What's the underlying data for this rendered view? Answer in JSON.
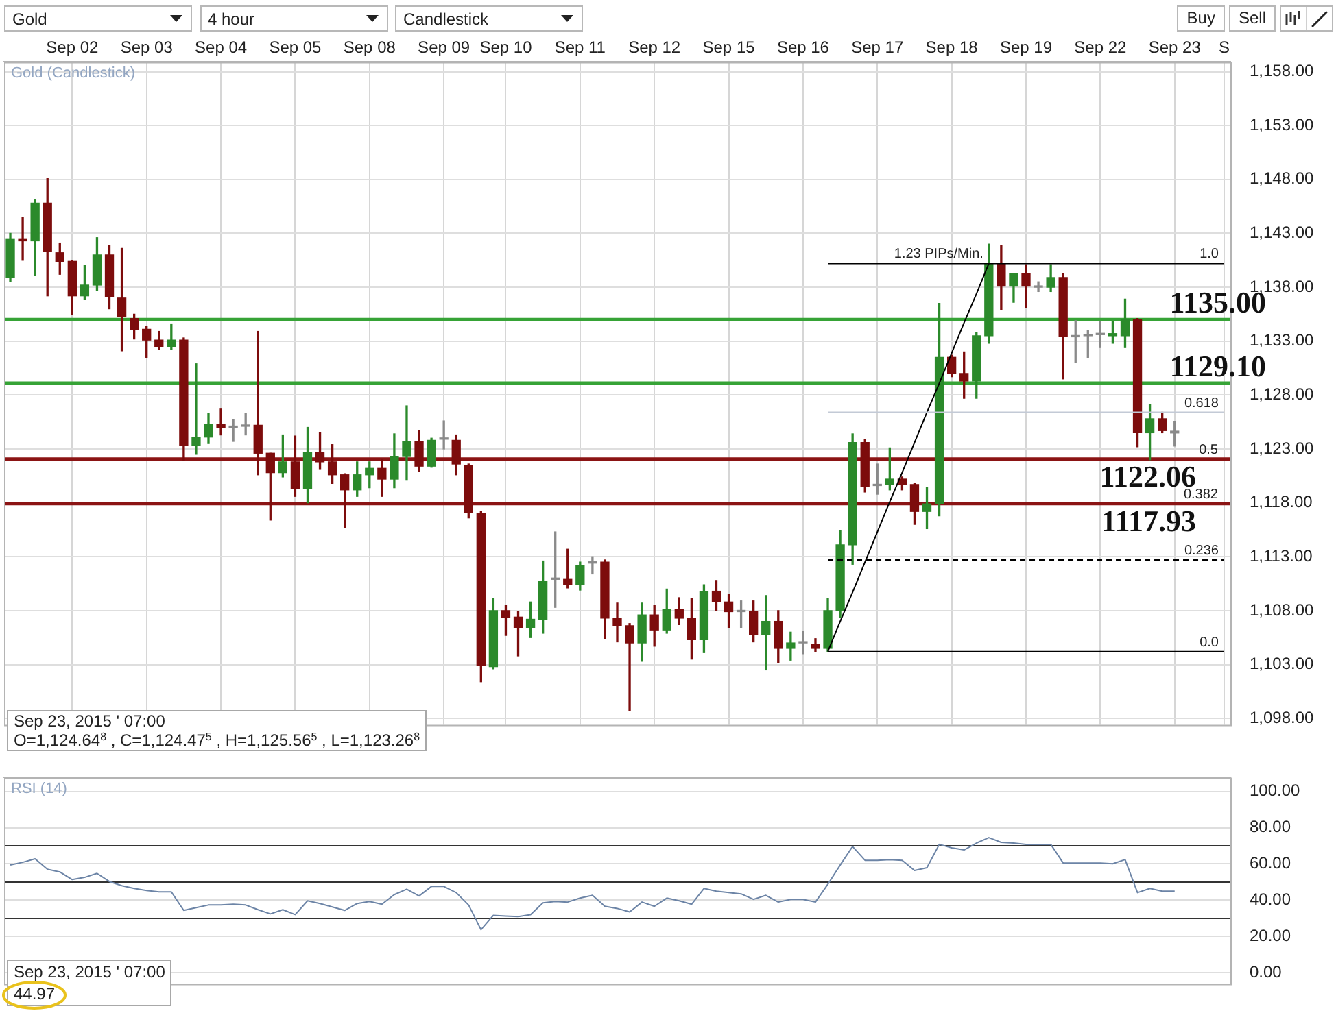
{
  "chart_data": [
    {
      "type": "other",
      "annotations": [
        "Gold",
        "4 hour",
        "Candlestick",
        "Buy",
        "Sell"
      ]
    },
    {
      "type": "candlestick",
      "title": "Gold (Candlestick)",
      "categories": [
        null,
        null,
        null,
        null,
        null,
        "Sep 02",
        null,
        null,
        null,
        null,
        null,
        "Sep 03",
        null,
        null,
        null,
        null,
        null,
        "Sep 04",
        null,
        null,
        null,
        null,
        null,
        "Sep 05",
        null,
        null,
        null,
        null,
        null,
        "Sep 08",
        null,
        null,
        null,
        null,
        null,
        "Sep 09",
        null,
        null,
        null,
        null,
        "Sep 10",
        null,
        null,
        null,
        null,
        null,
        "Sep 11",
        null,
        null,
        null,
        null,
        null,
        "Sep 12",
        null,
        null,
        null,
        null,
        null,
        "Sep 15",
        null,
        null,
        null,
        null,
        null,
        "Sep 16",
        null,
        null,
        null,
        null,
        null,
        "Sep 17",
        null,
        null,
        null,
        null,
        null,
        "Sep 18",
        null,
        null,
        null,
        null,
        null,
        "Sep 19",
        null,
        null,
        null,
        null,
        null,
        "Sep 22",
        null,
        null,
        null,
        null,
        null,
        "Sep 23",
        null,
        null,
        null,
        "S"
      ],
      "ohlc": [
        [
          1138.9,
          1143.0,
          1138.5,
          1142.5
        ],
        [
          1142.5,
          1144.5,
          1140.5,
          1142.3
        ],
        [
          1142.3,
          1146.1,
          1139.1,
          1145.8
        ],
        [
          1145.8,
          1148.1,
          1137.2,
          1141.3
        ],
        [
          1141.2,
          1142.1,
          1139.2,
          1140.4
        ],
        [
          1140.4,
          1140.5,
          1135.5,
          1137.2
        ],
        [
          1137.2,
          1140.0,
          1136.9,
          1138.2
        ],
        [
          1138.2,
          1142.6,
          1137.7,
          1141.0
        ],
        [
          1141.0,
          1141.9,
          1136.0,
          1137.1
        ],
        [
          1137.0,
          1141.6,
          1132.1,
          1135.3
        ],
        [
          1135.1,
          1135.5,
          1133.2,
          1134.1
        ],
        [
          1134.1,
          1134.4,
          1131.5,
          1133.1
        ],
        [
          1133.1,
          1133.9,
          1132.2,
          1132.5
        ],
        [
          1132.5,
          1134.6,
          1132.2,
          1133.1
        ],
        [
          1133.1,
          1133.3,
          1121.9,
          1123.3
        ],
        [
          1123.3,
          1130.9,
          1122.5,
          1124.1
        ],
        [
          1124.1,
          1126.3,
          1123.5,
          1125.3
        ],
        [
          1125.3,
          1126.7,
          1124.3,
          1125.0
        ],
        [
          1125.0,
          1125.7,
          1123.7,
          1125.0
        ],
        [
          1125.1,
          1126.3,
          1124.3,
          1125.1
        ],
        [
          1125.2,
          1133.9,
          1120.6,
          1122.6
        ],
        [
          1122.6,
          1122.6,
          1116.4,
          1120.8
        ],
        [
          1120.8,
          1124.3,
          1120.4,
          1121.8
        ],
        [
          1121.8,
          1124.2,
          1118.6,
          1119.3
        ],
        [
          1119.3,
          1125.0,
          1118.0,
          1122.7
        ],
        [
          1122.7,
          1124.5,
          1121.1,
          1121.8
        ],
        [
          1121.8,
          1123.4,
          1119.8,
          1120.6
        ],
        [
          1120.6,
          1120.7,
          1115.7,
          1119.2
        ],
        [
          1119.2,
          1121.8,
          1118.6,
          1120.6
        ],
        [
          1120.6,
          1121.8,
          1119.4,
          1121.2
        ],
        [
          1121.2,
          1122.0,
          1118.6,
          1120.2
        ],
        [
          1120.2,
          1124.4,
          1119.4,
          1122.3
        ],
        [
          1122.3,
          1127.0,
          1120.1,
          1123.7
        ],
        [
          1123.7,
          1124.7,
          1120.9,
          1121.4
        ],
        [
          1121.4,
          1124.0,
          1121.3,
          1123.8
        ],
        [
          1123.9,
          1125.6,
          1123.0,
          1123.9
        ],
        [
          1123.8,
          1124.3,
          1120.6,
          1121.6
        ],
        [
          1121.5,
          1121.6,
          1116.6,
          1117.1
        ],
        [
          1117.0,
          1117.2,
          1101.4,
          1102.9
        ],
        [
          1102.8,
          1109.1,
          1102.6,
          1108.0
        ],
        [
          1108.0,
          1108.5,
          1105.7,
          1107.4
        ],
        [
          1107.4,
          1107.9,
          1103.8,
          1106.4
        ],
        [
          1106.4,
          1108.8,
          1105.5,
          1107.2
        ],
        [
          1107.2,
          1112.6,
          1105.9,
          1110.7
        ],
        [
          1110.9,
          1115.3,
          1108.3,
          1110.9
        ],
        [
          1110.9,
          1113.7,
          1110.1,
          1110.4
        ],
        [
          1110.4,
          1112.5,
          1109.9,
          1112.2
        ],
        [
          1112.4,
          1113.0,
          1111.4,
          1112.4
        ],
        [
          1112.5,
          1112.7,
          1105.4,
          1107.3
        ],
        [
          1107.3,
          1108.7,
          1105.1,
          1106.6
        ],
        [
          1106.6,
          1106.8,
          1098.7,
          1105.0
        ],
        [
          1105.0,
          1108.7,
          1103.3,
          1107.6
        ],
        [
          1107.6,
          1108.5,
          1104.7,
          1106.2
        ],
        [
          1106.2,
          1110.0,
          1105.9,
          1108.1
        ],
        [
          1108.1,
          1109.2,
          1106.7,
          1107.3
        ],
        [
          1107.3,
          1109.1,
          1103.5,
          1105.3
        ],
        [
          1105.3,
          1110.4,
          1104.1,
          1109.8
        ],
        [
          1109.8,
          1110.8,
          1108.0,
          1108.8
        ],
        [
          1108.8,
          1109.5,
          1106.4,
          1107.9
        ],
        [
          1107.9,
          1108.9,
          1106.4,
          1107.9
        ],
        [
          1107.9,
          1108.9,
          1105.1,
          1105.8
        ],
        [
          1105.8,
          1109.4,
          1102.5,
          1107.0
        ],
        [
          1107.0,
          1108.0,
          1103.2,
          1104.5
        ],
        [
          1104.5,
          1106.0,
          1103.4,
          1105.0
        ],
        [
          1105.0,
          1106.1,
          1104.0,
          1105.0
        ],
        [
          1104.9,
          1105.4,
          1104.2,
          1104.5
        ],
        [
          1104.5,
          1109.1,
          1104.2,
          1108.0
        ],
        [
          1108.0,
          1115.4,
          1107.4,
          1114.1
        ],
        [
          1114.1,
          1124.4,
          1112.3,
          1123.6
        ],
        [
          1123.6,
          1123.9,
          1119.0,
          1119.5
        ],
        [
          1119.6,
          1121.6,
          1118.8,
          1119.6
        ],
        [
          1119.7,
          1123.1,
          1119.2,
          1120.2
        ],
        [
          1120.2,
          1120.4,
          1119.2,
          1119.7
        ],
        [
          1119.7,
          1119.8,
          1116.0,
          1117.2
        ],
        [
          1117.2,
          1119.4,
          1115.6,
          1117.9
        ],
        [
          1117.9,
          1136.5,
          1116.8,
          1131.5
        ],
        [
          1131.5,
          1131.7,
          1129.7,
          1130.0
        ],
        [
          1130.0,
          1132.0,
          1127.7,
          1129.3
        ],
        [
          1129.3,
          1133.8,
          1127.7,
          1133.5
        ],
        [
          1133.5,
          1142.0,
          1132.8,
          1140.2
        ],
        [
          1140.2,
          1141.9,
          1135.9,
          1138.1
        ],
        [
          1138.1,
          1139.3,
          1136.6,
          1139.3
        ],
        [
          1139.3,
          1140.1,
          1136.1,
          1138.1
        ],
        [
          1138.0,
          1138.5,
          1137.6,
          1138.0
        ],
        [
          1138.0,
          1140.1,
          1137.6,
          1138.9
        ],
        [
          1138.9,
          1139.3,
          1129.5,
          1133.4
        ],
        [
          1133.4,
          1134.9,
          1131.0,
          1133.4
        ],
        [
          1133.5,
          1134.0,
          1131.5,
          1133.5
        ],
        [
          1133.6,
          1134.8,
          1132.4,
          1133.6
        ],
        [
          1133.5,
          1134.8,
          1132.8,
          1133.7
        ],
        [
          1133.5,
          1136.9,
          1132.4,
          1135.0
        ],
        [
          1135.0,
          1135.1,
          1123.2,
          1124.5
        ],
        [
          1124.5,
          1127.1,
          1122.0,
          1125.8
        ],
        [
          1125.8,
          1126.4,
          1124.5,
          1124.7
        ],
        [
          1124.648,
          1125.565,
          1123.268,
          1124.475
        ],
        null,
        null,
        null,
        null
      ],
      "colors": [
        "#2b8a2b",
        "#7d0c0c",
        "#2b8a2b",
        "#7d0c0c",
        "#7d0c0c",
        "#7d0c0c",
        "#2b8a2b",
        "#2b8a2b",
        "#7d0c0c",
        "#7d0c0c",
        "#7d0c0c",
        "#7d0c0c",
        "#7d0c0c",
        "#2b8a2b",
        "#7d0c0c",
        "#2b8a2b",
        "#2b8a2b",
        "#7d0c0c",
        "#8a8a8a",
        "#8a8a8a",
        "#7d0c0c",
        "#7d0c0c",
        "#2b8a2b",
        "#7d0c0c",
        "#2b8a2b",
        "#7d0c0c",
        "#7d0c0c",
        "#7d0c0c",
        "#2b8a2b",
        "#2b8a2b",
        "#7d0c0c",
        "#2b8a2b",
        "#2b8a2b",
        "#7d0c0c",
        "#2b8a2b",
        "#8a8a8a",
        "#7d0c0c",
        "#7d0c0c",
        "#7d0c0c",
        "#2b8a2b",
        "#7d0c0c",
        "#7d0c0c",
        "#2b8a2b",
        "#2b8a2b",
        "#8a8a8a",
        "#7d0c0c",
        "#2b8a2b",
        "#8a8a8a",
        "#7d0c0c",
        "#7d0c0c",
        "#7d0c0c",
        "#2b8a2b",
        "#7d0c0c",
        "#2b8a2b",
        "#7d0c0c",
        "#7d0c0c",
        "#2b8a2b",
        "#7d0c0c",
        "#7d0c0c",
        "#8a8a8a",
        "#7d0c0c",
        "#2b8a2b",
        "#7d0c0c",
        "#2b8a2b",
        "#8a8a8a",
        "#7d0c0c",
        "#2b8a2b",
        "#2b8a2b",
        "#2b8a2b",
        "#7d0c0c",
        "#8a8a8a",
        "#2b8a2b",
        "#7d0c0c",
        "#7d0c0c",
        "#2b8a2b",
        "#2b8a2b",
        "#7d0c0c",
        "#7d0c0c",
        "#2b8a2b",
        "#2b8a2b",
        "#7d0c0c",
        "#2b8a2b",
        "#7d0c0c",
        "#8a8a8a",
        "#2b8a2b",
        "#7d0c0c",
        "#8a8a8a",
        "#8a8a8a",
        "#8a8a8a",
        "#2b8a2b",
        "#2b8a2b",
        "#7d0c0c",
        "#2b8a2b",
        "#7d0c0c",
        "#8a8a8a",
        null,
        null,
        null,
        null
      ],
      "series": [
        {
          "type": "line",
          "name": "1.0",
          "color": "#000000",
          "values": [
            null,
            null,
            null,
            null,
            null,
            null,
            null,
            null,
            null,
            null,
            null,
            null,
            null,
            null,
            null,
            null,
            null,
            null,
            null,
            null,
            null,
            null,
            null,
            null,
            null,
            null,
            null,
            null,
            null,
            null,
            null,
            null,
            null,
            null,
            null,
            null,
            null,
            null,
            null,
            null,
            null,
            null,
            null,
            null,
            null,
            null,
            null,
            null,
            null,
            null,
            null,
            null,
            null,
            null,
            null,
            null,
            null,
            null,
            null,
            null,
            null,
            null,
            null,
            null,
            null,
            null,
            1140.2,
            1140.2,
            1140.2,
            1140.2,
            1140.2,
            1140.2,
            1140.2,
            1140.2,
            1140.2,
            1140.2,
            1140.2,
            1140.2,
            1140.2,
            1140.2,
            1140.2,
            1140.2,
            1140.2,
            1140.2,
            1140.2,
            1140.2,
            1140.2,
            1140.2,
            1140.2,
            1140.2,
            1140.2,
            1140.2,
            1140.2,
            1140.2,
            1140.2,
            1140.2,
            1140.2,
            1140.2,
            1140.2
          ]
        },
        {
          "type": "line",
          "name": "0.618",
          "color": "#c3cad6",
          "values": [
            null,
            null,
            null,
            null,
            null,
            null,
            null,
            null,
            null,
            null,
            null,
            null,
            null,
            null,
            null,
            null,
            null,
            null,
            null,
            null,
            null,
            null,
            null,
            null,
            null,
            null,
            null,
            null,
            null,
            null,
            null,
            null,
            null,
            null,
            null,
            null,
            null,
            null,
            null,
            null,
            null,
            null,
            null,
            null,
            null,
            null,
            null,
            null,
            null,
            null,
            null,
            null,
            null,
            null,
            null,
            null,
            null,
            null,
            null,
            null,
            null,
            null,
            null,
            null,
            null,
            null,
            1126.4,
            1126.4,
            1126.4,
            1126.4,
            1126.4,
            1126.4,
            1126.4,
            1126.4,
            1126.4,
            1126.4,
            1126.4,
            1126.4,
            1126.4,
            1126.4,
            1126.4,
            1126.4,
            1126.4,
            1126.4,
            1126.4,
            1126.4,
            1126.4,
            1126.4,
            1126.4,
            1126.4,
            1126.4,
            1126.4,
            1126.4,
            1126.4,
            1126.4,
            1126.4,
            1126.4,
            1126.4,
            1126.4
          ]
        },
        {
          "type": "line",
          "name": "0.236",
          "color": "#000000",
          "line_style": "dashed",
          "values": [
            null,
            null,
            null,
            null,
            null,
            null,
            null,
            null,
            null,
            null,
            null,
            null,
            null,
            null,
            null,
            null,
            null,
            null,
            null,
            null,
            null,
            null,
            null,
            null,
            null,
            null,
            null,
            null,
            null,
            null,
            null,
            null,
            null,
            null,
            null,
            null,
            null,
            null,
            null,
            null,
            null,
            null,
            null,
            null,
            null,
            null,
            null,
            null,
            null,
            null,
            null,
            null,
            null,
            null,
            null,
            null,
            null,
            null,
            null,
            null,
            null,
            null,
            null,
            null,
            null,
            null,
            1112.7,
            1112.7,
            1112.7,
            1112.7,
            1112.7,
            1112.7,
            1112.7,
            1112.7,
            1112.7,
            1112.7,
            1112.7,
            1112.7,
            1112.7,
            1112.7,
            1112.7,
            1112.7,
            1112.7,
            1112.7,
            1112.7,
            1112.7,
            1112.7,
            1112.7,
            1112.7,
            1112.7,
            1112.7,
            1112.7,
            1112.7,
            1112.7,
            1112.7,
            1112.7,
            1112.7,
            1112.7,
            1112.7
          ]
        },
        {
          "type": "line",
          "name": "0.0",
          "color": "#000000",
          "values": [
            null,
            null,
            null,
            null,
            null,
            null,
            null,
            null,
            null,
            null,
            null,
            null,
            null,
            null,
            null,
            null,
            null,
            null,
            null,
            null,
            null,
            null,
            null,
            null,
            null,
            null,
            null,
            null,
            null,
            null,
            null,
            null,
            null,
            null,
            null,
            null,
            null,
            null,
            null,
            null,
            null,
            null,
            null,
            null,
            null,
            null,
            null,
            null,
            null,
            null,
            null,
            null,
            null,
            null,
            null,
            null,
            null,
            null,
            null,
            null,
            null,
            null,
            null,
            null,
            null,
            null,
            1104.2,
            1104.2,
            1104.2,
            1104.2,
            1104.2,
            1104.2,
            1104.2,
            1104.2,
            1104.2,
            1104.2,
            1104.2,
            1104.2,
            1104.2,
            1104.2,
            1104.2,
            1104.2,
            1104.2,
            1104.2,
            1104.2,
            1104.2,
            1104.2,
            1104.2,
            1104.2,
            1104.2,
            1104.2,
            1104.2,
            1104.2,
            1104.2,
            1104.2,
            1104.2,
            1104.2,
            1104.2,
            1104.2
          ]
        },
        {
          "type": "line",
          "name": "1.23 PIPs/Min.",
          "color": "#000000",
          "values": [
            null,
            null,
            null,
            null,
            null,
            null,
            null,
            null,
            null,
            null,
            null,
            null,
            null,
            null,
            null,
            null,
            null,
            null,
            null,
            null,
            null,
            null,
            null,
            null,
            null,
            null,
            null,
            null,
            null,
            null,
            null,
            null,
            null,
            null,
            null,
            null,
            null,
            null,
            null,
            null,
            null,
            null,
            null,
            null,
            null,
            null,
            null,
            null,
            null,
            null,
            null,
            null,
            null,
            null,
            null,
            null,
            null,
            null,
            null,
            null,
            null,
            null,
            null,
            null,
            null,
            null,
            1104.2,
            1107.0,
            1109.7,
            1112.5,
            1115.3,
            1118.1,
            1120.8,
            1123.6,
            1126.4,
            1129.1,
            1131.9,
            1134.7,
            1137.4,
            1140.2,
            null,
            null,
            null,
            null,
            null,
            null,
            null,
            null,
            null,
            null,
            null,
            null,
            null,
            null,
            null,
            null,
            null,
            null,
            null
          ]
        }
      ],
      "ylim": [
        1097.4,
        1158.9
      ],
      "yticks": [
        {
          "value": 1098,
          "label": "1,098.00"
        },
        {
          "value": 1103,
          "label": "1,103.00"
        },
        {
          "value": 1108,
          "label": "1,108.00"
        },
        {
          "value": 1113,
          "label": "1,113.00"
        },
        {
          "value": 1118,
          "label": "1,118.00"
        },
        {
          "value": 1123,
          "label": "1,123.00"
        },
        {
          "value": 1128,
          "label": "1,128.00"
        },
        {
          "value": 1133,
          "label": "1,133.00"
        },
        {
          "value": 1138,
          "label": "1,138.00"
        },
        {
          "value": 1143,
          "label": "1,143.00"
        },
        {
          "value": 1148,
          "label": "1,148.00"
        },
        {
          "value": 1153,
          "label": "1,153.00"
        },
        {
          "value": 1158,
          "label": "1,158.00"
        }
      ],
      "grid": true,
      "ref_lines": [
        {
          "axis": "y",
          "value": 1135.0,
          "label": "1135.00",
          "color": "#36a336"
        },
        {
          "axis": "y",
          "value": 1129.1,
          "label": "1129.10",
          "color": "#36a336"
        },
        {
          "axis": "y",
          "value": 1122.06,
          "label": "1122.06",
          "color": "#8b1414"
        },
        {
          "axis": "y",
          "value": 1117.93,
          "label": "1117.93",
          "color": "#8b1414"
        }
      ],
      "annotations": [
        {
          "text": "0.5",
          "y": 1122.06
        },
        {
          "text": "0.382",
          "y": 1117.93
        },
        "Sep 23, 2015 ' 07:00",
        "O=1,124.64$^{8}$ , C=1,124.47$^{5}$ , H=1,125.56$^{5}$ , L=1,123.26$^{8}$"
      ]
    },
    {
      "type": "line",
      "title": "RSI (14)",
      "categories": [
        null,
        null,
        null,
        null,
        null,
        null,
        null,
        null,
        null,
        null,
        null,
        null,
        null,
        null,
        null,
        null,
        null,
        null,
        null,
        null,
        null,
        null,
        null,
        null,
        null,
        null,
        null,
        null,
        null,
        null,
        null,
        null,
        null,
        null,
        null,
        null,
        null,
        null,
        null,
        null,
        null,
        null,
        null,
        null,
        null,
        null,
        null,
        null,
        null,
        null,
        null,
        null,
        null,
        null,
        null,
        null,
        null,
        null,
        null,
        null,
        null,
        null,
        null,
        null,
        null,
        null,
        null,
        null,
        null,
        null,
        null,
        null,
        null,
        null,
        null,
        null,
        null,
        null,
        null,
        null,
        null,
        null,
        null,
        null,
        null,
        null,
        null,
        null,
        null,
        null,
        null,
        null,
        null,
        null,
        null,
        null,
        null,
        null,
        null
      ],
      "values": [
        59.4,
        60.9,
        62.8,
        57.1,
        55.6,
        51.4,
        52.6,
        54.8,
        50.3,
        48.0,
        46.5,
        45.4,
        44.6,
        44.6,
        34.4,
        35.9,
        37.4,
        37.4,
        37.8,
        37.4,
        34.8,
        32.5,
        34.8,
        32.1,
        39.7,
        38.2,
        36.3,
        34.4,
        38.2,
        39.3,
        37.8,
        43.1,
        46.1,
        42.4,
        47.6,
        47.6,
        44.2,
        37.4,
        23.8,
        31.7,
        31.3,
        31.0,
        32.1,
        38.6,
        39.3,
        39.0,
        41.2,
        42.7,
        36.7,
        35.5,
        33.6,
        39.0,
        36.7,
        41.2,
        39.7,
        37.8,
        46.5,
        45.0,
        44.2,
        43.5,
        40.5,
        42.7,
        39.0,
        40.5,
        40.5,
        39.0,
        48.8,
        59.4,
        69.6,
        62.0,
        62.0,
        62.4,
        62.0,
        56.4,
        57.9,
        70.8,
        68.9,
        67.7,
        71.5,
        74.5,
        71.9,
        71.5,
        70.8,
        70.8,
        70.8,
        60.5,
        60.5,
        60.5,
        60.5,
        60.1,
        62.4,
        44.2,
        46.5,
        45.0,
        44.97,
        null,
        null,
        null,
        null
      ],
      "color": "#6c84a6",
      "ylim": [
        -6.1,
        107.6
      ],
      "yticks": [
        {
          "value": 0,
          "label": "0.00"
        },
        {
          "value": 20,
          "label": "20.00"
        },
        {
          "value": 40,
          "label": "40.00"
        },
        {
          "value": 60,
          "label": "60.00"
        },
        {
          "value": 80,
          "label": "80.00"
        },
        {
          "value": 100,
          "label": "100.00"
        }
      ],
      "tick_labels": "y",
      "grid": "y",
      "ref_lines": [
        {
          "axis": "y",
          "value": 70,
          "color": "#333333"
        },
        {
          "axis": "y",
          "value": 50,
          "color": "#333333"
        },
        {
          "axis": "y",
          "value": 30,
          "color": "#333333"
        }
      ],
      "annotations": [
        "Sep 23, 2015 ' 07:00",
        "44.97"
      ]
    }
  ]
}
